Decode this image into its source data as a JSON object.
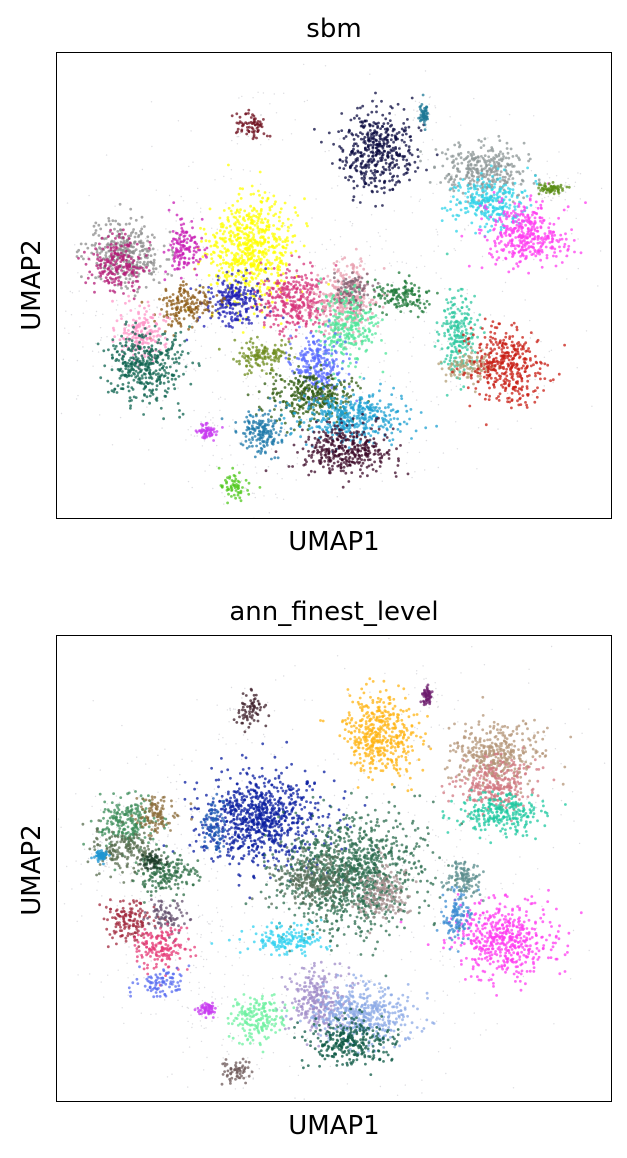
{
  "chart_data": [
    {
      "type": "scatter",
      "title": "sbm",
      "xlabel": "UMAP1",
      "ylabel": "UMAP2",
      "grid": false,
      "legend": "none",
      "clusters": [
        {
          "x": 0.35,
          "y": 0.58,
          "rx": 0.07,
          "ry": 0.1,
          "color": "#ffff00"
        },
        {
          "x": 0.425,
          "y": 0.47,
          "rx": 0.06,
          "ry": 0.06,
          "color": "#d7347a"
        },
        {
          "x": 0.32,
          "y": 0.47,
          "rx": 0.05,
          "ry": 0.05,
          "color": "#1f1fb4"
        },
        {
          "x": 0.52,
          "y": 0.47,
          "rx": 0.05,
          "ry": 0.07,
          "color": "#e8a0b0"
        },
        {
          "x": 0.53,
          "y": 0.49,
          "rx": 0.03,
          "ry": 0.035,
          "color": "#7f6070"
        },
        {
          "x": 0.52,
          "y": 0.42,
          "rx": 0.05,
          "ry": 0.06,
          "color": "#4fe69a"
        },
        {
          "x": 0.47,
          "y": 0.33,
          "rx": 0.045,
          "ry": 0.06,
          "color": "#5a6bff"
        },
        {
          "x": 0.62,
          "y": 0.48,
          "rx": 0.05,
          "ry": 0.03,
          "color": "#1f7a3a"
        },
        {
          "x": 0.575,
          "y": 0.79,
          "rx": 0.06,
          "ry": 0.08,
          "color": "#0b0b40"
        },
        {
          "x": 0.765,
          "y": 0.75,
          "rx": 0.07,
          "ry": 0.05,
          "color": "#8c9696"
        },
        {
          "x": 0.78,
          "y": 0.68,
          "rx": 0.06,
          "ry": 0.05,
          "color": "#2ed3e8"
        },
        {
          "x": 0.84,
          "y": 0.61,
          "rx": 0.07,
          "ry": 0.06,
          "color": "#ff3df0"
        },
        {
          "x": 0.72,
          "y": 0.4,
          "rx": 0.03,
          "ry": 0.08,
          "color": "#2fc8a0"
        },
        {
          "x": 0.74,
          "y": 0.33,
          "rx": 0.04,
          "ry": 0.03,
          "color": "#b4a078"
        },
        {
          "x": 0.805,
          "y": 0.33,
          "rx": 0.06,
          "ry": 0.07,
          "color": "#c81e14"
        },
        {
          "x": 0.125,
          "y": 0.57,
          "rx": 0.06,
          "ry": 0.06,
          "color": "#8c8c8c"
        },
        {
          "x": 0.11,
          "y": 0.55,
          "rx": 0.045,
          "ry": 0.05,
          "color": "#b41e78"
        },
        {
          "x": 0.23,
          "y": 0.58,
          "rx": 0.025,
          "ry": 0.06,
          "color": "#c81eb4"
        },
        {
          "x": 0.23,
          "y": 0.46,
          "rx": 0.045,
          "ry": 0.04,
          "color": "#8c5a14"
        },
        {
          "x": 0.15,
          "y": 0.4,
          "rx": 0.04,
          "ry": 0.05,
          "color": "#ff96c8"
        },
        {
          "x": 0.16,
          "y": 0.33,
          "rx": 0.06,
          "ry": 0.07,
          "color": "#0f6450"
        },
        {
          "x": 0.37,
          "y": 0.35,
          "rx": 0.05,
          "ry": 0.03,
          "color": "#6e8c1e"
        },
        {
          "x": 0.46,
          "y": 0.26,
          "rx": 0.07,
          "ry": 0.05,
          "color": "#2d5a0f"
        },
        {
          "x": 0.53,
          "y": 0.22,
          "rx": 0.09,
          "ry": 0.05,
          "color": "#1ea0d2"
        },
        {
          "x": 0.52,
          "y": 0.15,
          "rx": 0.08,
          "ry": 0.05,
          "color": "#3c0a28"
        },
        {
          "x": 0.37,
          "y": 0.19,
          "rx": 0.04,
          "ry": 0.045,
          "color": "#1e78aa"
        },
        {
          "x": 0.32,
          "y": 0.07,
          "rx": 0.025,
          "ry": 0.025,
          "color": "#50c81e"
        },
        {
          "x": 0.35,
          "y": 0.84,
          "rx": 0.025,
          "ry": 0.03,
          "color": "#6e0f1e"
        },
        {
          "x": 0.66,
          "y": 0.87,
          "rx": 0.008,
          "ry": 0.02,
          "color": "#1e7896"
        },
        {
          "x": 0.89,
          "y": 0.71,
          "rx": 0.02,
          "ry": 0.01,
          "color": "#5a8c14"
        },
        {
          "x": 0.27,
          "y": 0.19,
          "rx": 0.015,
          "ry": 0.015,
          "color": "#c83cf0"
        }
      ]
    },
    {
      "type": "scatter",
      "title": "ann_finest_level",
      "xlabel": "UMAP1",
      "ylabel": "UMAP2",
      "grid": false,
      "legend": "none",
      "clusters": [
        {
          "x": 0.37,
          "y": 0.61,
          "rx": 0.1,
          "ry": 0.09,
          "color": "#0a1ea0"
        },
        {
          "x": 0.53,
          "y": 0.49,
          "rx": 0.11,
          "ry": 0.11,
          "color": "#2d6e50"
        },
        {
          "x": 0.585,
          "y": 0.45,
          "rx": 0.04,
          "ry": 0.05,
          "color": "#a89090"
        },
        {
          "x": 0.46,
          "y": 0.48,
          "rx": 0.06,
          "ry": 0.05,
          "color": "#5a6e5a"
        },
        {
          "x": 0.58,
          "y": 0.79,
          "rx": 0.06,
          "ry": 0.08,
          "color": "#ffb414"
        },
        {
          "x": 0.79,
          "y": 0.75,
          "rx": 0.07,
          "ry": 0.06,
          "color": "#b49678"
        },
        {
          "x": 0.79,
          "y": 0.68,
          "rx": 0.06,
          "ry": 0.05,
          "color": "#d27882"
        },
        {
          "x": 0.8,
          "y": 0.62,
          "rx": 0.07,
          "ry": 0.04,
          "color": "#1ec8a0"
        },
        {
          "x": 0.805,
          "y": 0.35,
          "rx": 0.08,
          "ry": 0.07,
          "color": "#ff3cf0"
        },
        {
          "x": 0.72,
          "y": 0.4,
          "rx": 0.025,
          "ry": 0.05,
          "color": "#3c8cd2"
        },
        {
          "x": 0.73,
          "y": 0.48,
          "rx": 0.03,
          "ry": 0.04,
          "color": "#5a8c8c"
        },
        {
          "x": 0.125,
          "y": 0.6,
          "rx": 0.05,
          "ry": 0.05,
          "color": "#3c8c5a"
        },
        {
          "x": 0.18,
          "y": 0.62,
          "rx": 0.03,
          "ry": 0.04,
          "color": "#8c6e3c"
        },
        {
          "x": 0.12,
          "y": 0.54,
          "rx": 0.05,
          "ry": 0.04,
          "color": "#5a6e50"
        },
        {
          "x": 0.2,
          "y": 0.49,
          "rx": 0.045,
          "ry": 0.04,
          "color": "#2d6e46"
        },
        {
          "x": 0.17,
          "y": 0.52,
          "rx": 0.02,
          "ry": 0.015,
          "color": "#1e3c28"
        },
        {
          "x": 0.285,
          "y": 0.6,
          "rx": 0.02,
          "ry": 0.05,
          "color": "#1e5ab4"
        },
        {
          "x": 0.13,
          "y": 0.39,
          "rx": 0.04,
          "ry": 0.04,
          "color": "#a0283c"
        },
        {
          "x": 0.2,
          "y": 0.4,
          "rx": 0.03,
          "ry": 0.03,
          "color": "#64506e"
        },
        {
          "x": 0.19,
          "y": 0.33,
          "rx": 0.045,
          "ry": 0.04,
          "color": "#e63c78"
        },
        {
          "x": 0.19,
          "y": 0.26,
          "rx": 0.04,
          "ry": 0.025,
          "color": "#5a6ef0"
        },
        {
          "x": 0.41,
          "y": 0.35,
          "rx": 0.06,
          "ry": 0.03,
          "color": "#32d2f0"
        },
        {
          "x": 0.47,
          "y": 0.22,
          "rx": 0.05,
          "ry": 0.06,
          "color": "#a08cc8"
        },
        {
          "x": 0.55,
          "y": 0.19,
          "rx": 0.08,
          "ry": 0.06,
          "color": "#8caae6"
        },
        {
          "x": 0.53,
          "y": 0.13,
          "rx": 0.07,
          "ry": 0.045,
          "color": "#0f5a46"
        },
        {
          "x": 0.36,
          "y": 0.18,
          "rx": 0.045,
          "ry": 0.045,
          "color": "#6ef0a0"
        },
        {
          "x": 0.32,
          "y": 0.07,
          "rx": 0.025,
          "ry": 0.02,
          "color": "#6e5a5a"
        },
        {
          "x": 0.35,
          "y": 0.84,
          "rx": 0.025,
          "ry": 0.03,
          "color": "#3c1e28"
        },
        {
          "x": 0.665,
          "y": 0.87,
          "rx": 0.008,
          "ry": 0.02,
          "color": "#6e1e6e"
        },
        {
          "x": 0.08,
          "y": 0.53,
          "rx": 0.01,
          "ry": 0.01,
          "color": "#1e96d2"
        },
        {
          "x": 0.27,
          "y": 0.2,
          "rx": 0.012,
          "ry": 0.012,
          "color": "#c83cf0"
        }
      ]
    }
  ]
}
